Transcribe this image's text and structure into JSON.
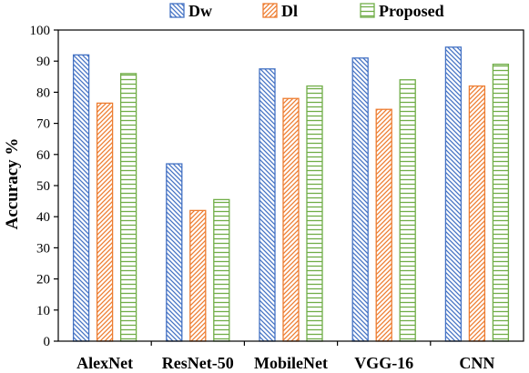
{
  "chart_data": {
    "type": "bar",
    "categories": [
      "AlexNet",
      "ResNet-50",
      "MobileNet",
      "VGG-16",
      "CNN"
    ],
    "series": [
      {
        "name": "Dw",
        "values": [
          92,
          57,
          87.5,
          91,
          94.5
        ],
        "color": "#4472C4",
        "pattern": "diagonal-down"
      },
      {
        "name": "Dl",
        "values": [
          76.5,
          42,
          78,
          74.5,
          82
        ],
        "color": "#ED7D31",
        "pattern": "diagonal-up"
      },
      {
        "name": "Proposed",
        "values": [
          86,
          45.5,
          82,
          84,
          89
        ],
        "color": "#70AD47",
        "pattern": "horizontal"
      }
    ],
    "ylabel": "Accuracy %",
    "ylim": [
      0,
      100
    ],
    "yticks": [
      0,
      10,
      20,
      30,
      40,
      50,
      60,
      70,
      80,
      90,
      100
    ],
    "grid": false,
    "legend_position": "top"
  }
}
